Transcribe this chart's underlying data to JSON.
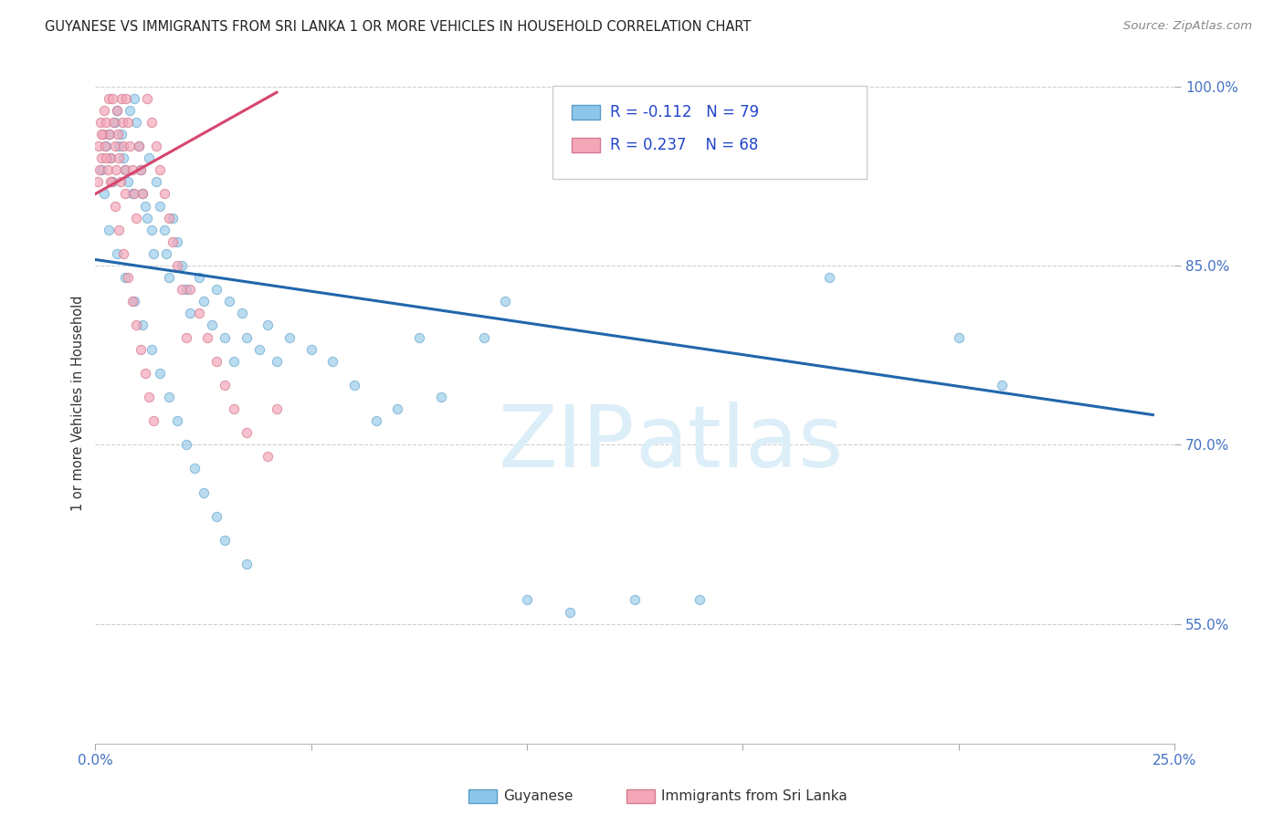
{
  "title": "GUYANESE VS IMMIGRANTS FROM SRI LANKA 1 OR MORE VEHICLES IN HOUSEHOLD CORRELATION CHART",
  "source": "Source: ZipAtlas.com",
  "ylabel": "1 or more Vehicles in Household",
  "xlim": [
    0.0,
    25.0
  ],
  "ylim": [
    45.0,
    102.0
  ],
  "yticks": [
    55.0,
    70.0,
    85.0,
    100.0
  ],
  "ytick_labels": [
    "55.0%",
    "70.0%",
    "85.0%",
    "100.0%"
  ],
  "xticks": [
    0.0,
    5.0,
    10.0,
    15.0,
    20.0,
    25.0
  ],
  "xtick_labels": [
    "0.0%",
    "",
    "",
    "",
    "",
    "25.0%"
  ],
  "watermark": "ZIPatlas",
  "blue_color": "#8dc6e8",
  "pink_color": "#f4a7b9",
  "line_blue": "#2166ac",
  "line_pink": "#d6466f",
  "title_color": "#222222",
  "source_color": "#888888",
  "tick_color": "#4472c4",
  "grid_color": "#d0d0d0",
  "blue_line_x0": 0.0,
  "blue_line_y0": 85.5,
  "blue_line_x1": 24.5,
  "blue_line_y1": 72.5,
  "pink_line_x0": 0.0,
  "pink_line_y0": 91.0,
  "pink_line_x1": 4.2,
  "pink_line_y1": 99.5,
  "guy_x": [
    0.15,
    0.2,
    0.25,
    0.3,
    0.35,
    0.4,
    0.45,
    0.5,
    0.55,
    0.6,
    0.65,
    0.7,
    0.75,
    0.8,
    0.85,
    0.9,
    0.95,
    1.0,
    1.05,
    1.1,
    1.15,
    1.2,
    1.25,
    1.3,
    1.35,
    1.4,
    1.5,
    1.6,
    1.65,
    1.7,
    1.8,
    1.9,
    2.0,
    2.1,
    2.2,
    2.4,
    2.5,
    2.7,
    2.8,
    3.0,
    3.1,
    3.2,
    3.4,
    3.5,
    3.8,
    4.0,
    4.2,
    4.5,
    5.0,
    5.5,
    6.0,
    6.5,
    7.0,
    7.5,
    8.0,
    9.0,
    9.5,
    10.0,
    11.0,
    12.5,
    14.0,
    17.0,
    20.0,
    21.0,
    0.3,
    0.5,
    0.7,
    0.9,
    1.1,
    1.3,
    1.5,
    1.7,
    1.9,
    2.1,
    2.3,
    2.5,
    2.8,
    3.0,
    3.5
  ],
  "guy_y": [
    93.0,
    91.0,
    95.0,
    96.0,
    94.0,
    92.0,
    97.0,
    98.0,
    95.0,
    96.0,
    94.0,
    93.0,
    92.0,
    98.0,
    91.0,
    99.0,
    97.0,
    95.0,
    93.0,
    91.0,
    90.0,
    89.0,
    94.0,
    88.0,
    86.0,
    92.0,
    90.0,
    88.0,
    86.0,
    84.0,
    89.0,
    87.0,
    85.0,
    83.0,
    81.0,
    84.0,
    82.0,
    80.0,
    83.0,
    79.0,
    82.0,
    77.0,
    81.0,
    79.0,
    78.0,
    80.0,
    77.0,
    79.0,
    78.0,
    77.0,
    75.0,
    72.0,
    73.0,
    79.0,
    74.0,
    79.0,
    82.0,
    57.0,
    56.0,
    57.0,
    57.0,
    84.0,
    79.0,
    75.0,
    88.0,
    86.0,
    84.0,
    82.0,
    80.0,
    78.0,
    76.0,
    74.0,
    72.0,
    70.0,
    68.0,
    66.0,
    64.0,
    62.0,
    60.0
  ],
  "sl_x": [
    0.05,
    0.08,
    0.1,
    0.12,
    0.15,
    0.18,
    0.2,
    0.22,
    0.25,
    0.28,
    0.3,
    0.32,
    0.35,
    0.38,
    0.4,
    0.42,
    0.45,
    0.48,
    0.5,
    0.52,
    0.55,
    0.58,
    0.6,
    0.62,
    0.65,
    0.68,
    0.7,
    0.72,
    0.75,
    0.8,
    0.85,
    0.9,
    0.95,
    1.0,
    1.05,
    1.1,
    1.2,
    1.3,
    1.4,
    1.5,
    1.6,
    1.7,
    1.8,
    1.9,
    2.0,
    2.1,
    2.2,
    2.4,
    2.6,
    2.8,
    3.0,
    3.2,
    3.5,
    4.0,
    4.2,
    0.15,
    0.25,
    0.35,
    0.45,
    0.55,
    0.65,
    0.75,
    0.85,
    0.95,
    1.05,
    1.15,
    1.25,
    1.35
  ],
  "sl_y": [
    92.0,
    95.0,
    93.0,
    97.0,
    94.0,
    96.0,
    98.0,
    95.0,
    97.0,
    93.0,
    99.0,
    96.0,
    94.0,
    92.0,
    99.0,
    97.0,
    95.0,
    93.0,
    98.0,
    96.0,
    94.0,
    92.0,
    99.0,
    97.0,
    95.0,
    93.0,
    91.0,
    99.0,
    97.0,
    95.0,
    93.0,
    91.0,
    89.0,
    95.0,
    93.0,
    91.0,
    99.0,
    97.0,
    95.0,
    93.0,
    91.0,
    89.0,
    87.0,
    85.0,
    83.0,
    79.0,
    83.0,
    81.0,
    79.0,
    77.0,
    75.0,
    73.0,
    71.0,
    69.0,
    73.0,
    96.0,
    94.0,
    92.0,
    90.0,
    88.0,
    86.0,
    84.0,
    82.0,
    80.0,
    78.0,
    76.0,
    74.0,
    72.0
  ]
}
